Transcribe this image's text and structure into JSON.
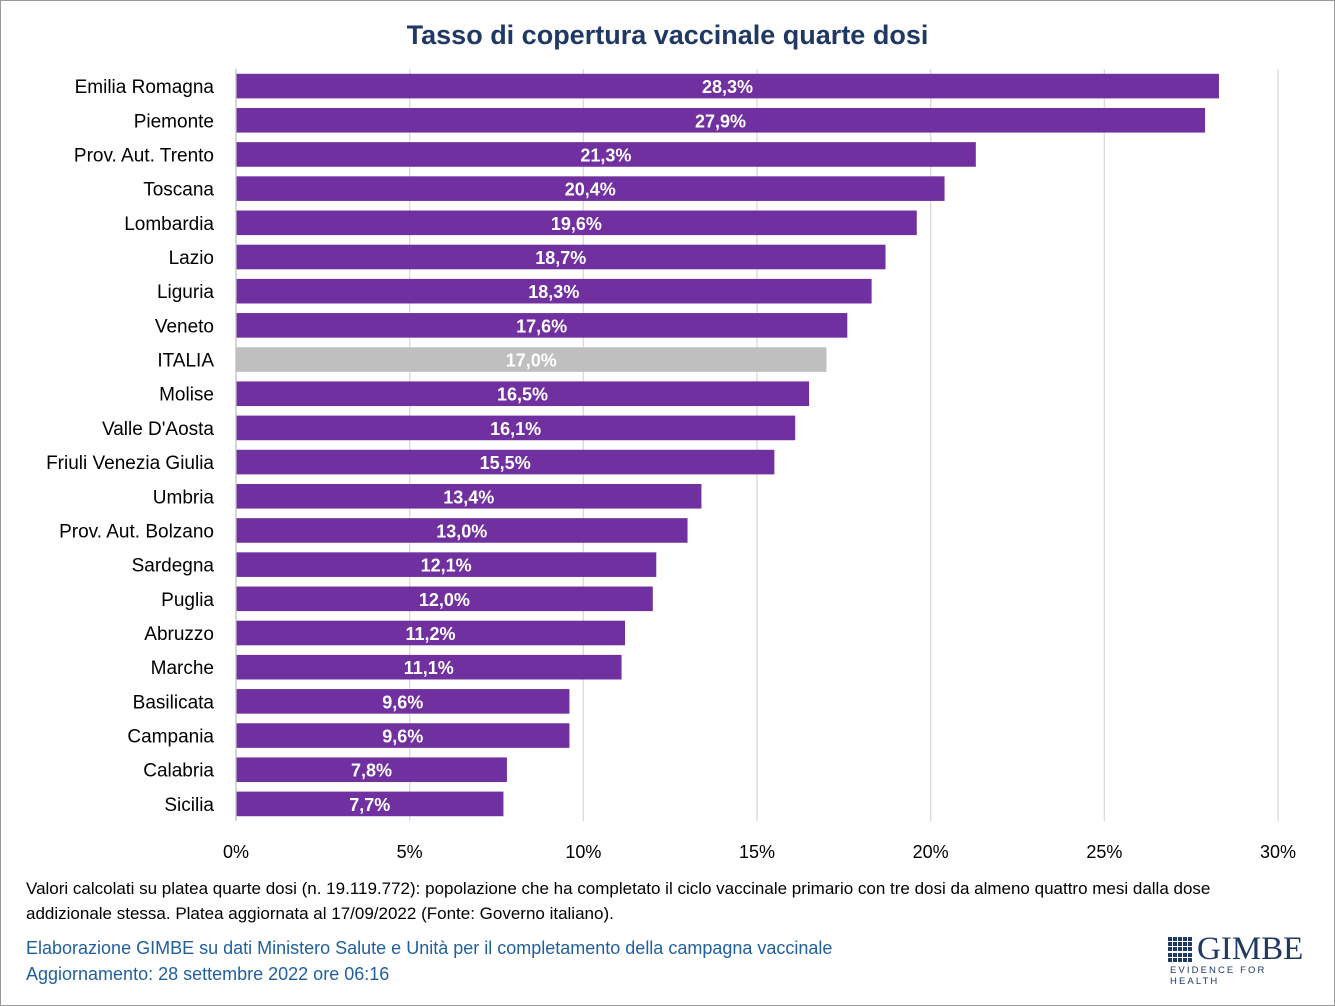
{
  "chart_data": {
    "type": "bar",
    "orientation": "horizontal",
    "title": "Tasso di copertura vaccinale quarte dosi",
    "categories": [
      "Emilia Romagna",
      "Piemonte",
      "Prov. Aut. Trento",
      "Toscana",
      "Lombardia",
      "Lazio",
      "Liguria",
      "Veneto",
      "ITALIA",
      "Molise",
      "Valle D'Aosta",
      "Friuli Venezia Giulia",
      "Umbria",
      "Prov. Aut. Bolzano",
      "Sardegna",
      "Puglia",
      "Abruzzo",
      "Marche",
      "Basilicata",
      "Campania",
      "Calabria",
      "Sicilia"
    ],
    "values": [
      28.3,
      27.9,
      21.3,
      20.4,
      19.6,
      18.7,
      18.3,
      17.6,
      17.0,
      16.5,
      16.1,
      15.5,
      13.4,
      13.0,
      12.1,
      12.0,
      11.2,
      11.1,
      9.6,
      9.6,
      7.8,
      7.7
    ],
    "data_labels": [
      "28,3%",
      "27,9%",
      "21,3%",
      "20,4%",
      "19,6%",
      "18,7%",
      "18,3%",
      "17,6%",
      "17,0%",
      "16,5%",
      "16,1%",
      "15,5%",
      "13,4%",
      "13,0%",
      "12,1%",
      "12,0%",
      "11,2%",
      "11,1%",
      "9,6%",
      "9,6%",
      "7,8%",
      "7,7%"
    ],
    "xlim": [
      0,
      30
    ],
    "xticks": [
      0,
      5,
      10,
      15,
      20,
      25,
      30
    ],
    "xtick_labels": [
      "0%",
      "5%",
      "10%",
      "15%",
      "20%",
      "25%",
      "30%"
    ],
    "grid": "vertical",
    "highlight_category": "ITALIA",
    "colors": {
      "bar": "#7030a0",
      "highlight": "#bfbfbf",
      "grid": "#d9d9d9",
      "title": "#1f3864",
      "data_label": "#ffffff"
    }
  },
  "footnote": "Valori calcolati su platea quarte dosi (n. 19.119.772): popolazione che ha completato il ciclo vaccinale primario con tre dosi da almeno quattro mesi dalla dose addizionale stessa. Platea aggiornata al 17/09/2022 (Fonte: Governo italiano).",
  "credits": {
    "line1": "Elaborazione GIMBE su dati Ministero Salute e Unità per il completamento della campagna vaccinale",
    "line2": "Aggiornamento: 28 settembre 2022 ore 06:16"
  },
  "logo": {
    "name": "GIMBE",
    "tagline": "EVIDENCE FOR HEALTH",
    "color": "#1f3864"
  }
}
